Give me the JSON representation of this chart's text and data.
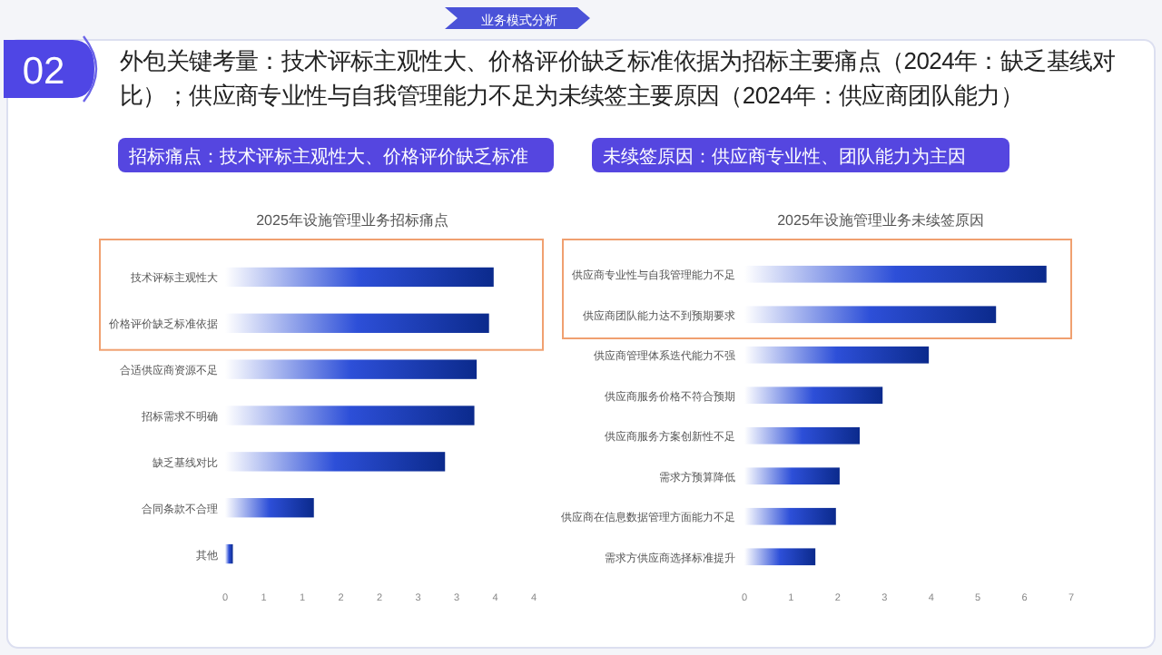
{
  "chart_data": [
    {
      "type": "other",
      "title": "外包关键考量：技术评标主观性大、价格评价缺乏标准依据为招标主要痛点（2024年：缺乏基线对比）；供应商专业性与自我管理能力不足为未续签主要原因（2024年：供应商团队能力）",
      "annotations": [
        "02",
        "业务模式分析"
      ]
    },
    {
      "type": "bar",
      "orientation": "horizontal",
      "subtitle": "招标痛点：技术评标主观性大、价格评价缺乏标准",
      "title": "2025年设施管理业务招标痛点",
      "categories": [
        "技术评标主观性大",
        "价格评价缺乏标准依据",
        "合适供应商资源不足",
        "招标需求不明确",
        "缺乏基线对比",
        "合同条款不合理",
        "其他"
      ],
      "values": [
        3.48,
        3.42,
        3.26,
        3.23,
        2.85,
        1.15,
        0.1
      ],
      "color": "#0b2a8c",
      "xlim": [
        0,
        4
      ],
      "xticks": [
        0,
        {
          "value": 0.5,
          "label": "1"
        },
        1,
        {
          "value": 1.5,
          "label": "2"
        },
        2,
        {
          "value": 2.5,
          "label": "3"
        },
        3,
        {
          "value": 3.5,
          "label": "4"
        },
        4
      ]
    },
    {
      "type": "bar",
      "orientation": "horizontal",
      "subtitle": "未续签原因：供应商专业性、团队能力为主因",
      "title": "2025年设施管理业务未续签原因",
      "categories": [
        "供应商专业性与自我管理能力不足",
        "供应商团队能力达不到预期要求",
        "供应商管理体系迭代能力不强",
        "供应商服务价格不符合预期",
        "供应商服务方案创新性不足",
        "需求方预算降低",
        "供应商在信息数据管理方面能力不足",
        "需求方供应商选择标准提升"
      ],
      "values": [
        6.47,
        5.39,
        3.95,
        2.96,
        2.47,
        2.04,
        1.96,
        1.52
      ],
      "color": "#0b2a8c",
      "xlim": [
        0,
        7
      ],
      "xticks": [
        0,
        1,
        2,
        3,
        4,
        5,
        6,
        7
      ]
    }
  ]
}
